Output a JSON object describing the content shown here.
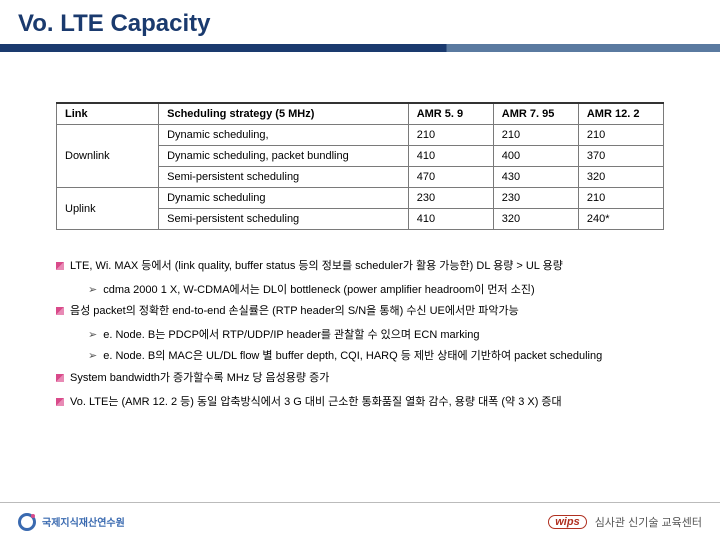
{
  "title": "Vo. LTE Capacity",
  "table": {
    "headers": [
      "Link",
      "Scheduling strategy (5 MHz)",
      "AMR 5. 9",
      "AMR 7. 95",
      "AMR 12. 2"
    ],
    "groups": [
      {
        "link": "Downlink",
        "rows": [
          [
            "Dynamic scheduling,",
            "210",
            "210",
            "210"
          ],
          [
            "Dynamic scheduling, packet bundling",
            "410",
            "400",
            "370"
          ],
          [
            "Semi-persistent scheduling",
            "470",
            "430",
            "320"
          ]
        ]
      },
      {
        "link": "Uplink",
        "rows": [
          [
            "Dynamic scheduling",
            "230",
            "230",
            "210"
          ],
          [
            "Semi-persistent scheduling",
            "410",
            "320",
            "240*"
          ]
        ]
      }
    ]
  },
  "bullets": [
    {
      "text": "LTE, Wi. MAX 등에서 (link quality, buffer status 등의 정보를 scheduler가 활용 가능한) DL 용량 > UL 용량",
      "subs": [
        "cdma 2000 1 X, W-CDMA에서는 DL이 bottleneck (power amplifier headroom이 먼저 소진)"
      ]
    },
    {
      "text": "음성 packet의 정확한 end-to-end 손실률은 (RTP header의 S/N을 통해) 수신 UE에서만 파악가능",
      "subs": [
        "e. Node. B는 PDCP에서 RTP/UDP/IP header를 관찰할 수 있으며 ECN marking",
        "e. Node. B의 MAC은 UL/DL flow 별 buffer depth, CQI, HARQ 등 제반 상태에 기반하여 packet scheduling"
      ]
    },
    {
      "text": "System bandwidth가 증가할수록 MHz 당 음성용량 증가",
      "subs": []
    },
    {
      "text": "Vo. LTE는 (AMR 12. 2 등) 동일 압축방식에서 3 G 대비 근소한 통화품질 열화 감수, 용량 대폭 (약 3 X) 증대",
      "subs": []
    }
  ],
  "footer": {
    "left": "국제지식재산연수원",
    "wips": "wips",
    "right": "심사관 신기술 교육센터"
  }
}
